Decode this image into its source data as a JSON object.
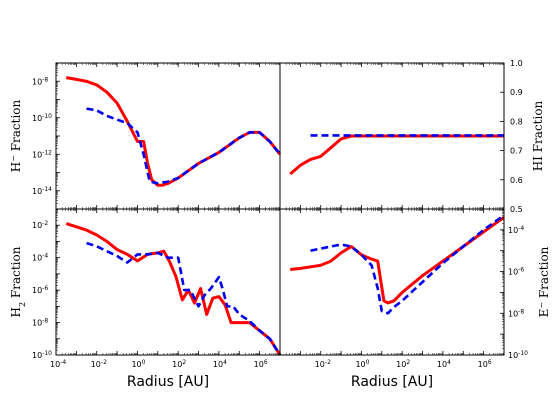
{
  "chart_data": [
    {
      "panel": "top-left",
      "type": "line",
      "ylabel": "H⁻ Fraction",
      "ylabel_main": "H",
      "ylabel_sup": "−",
      "ylabel_rest": " Fraction",
      "yscale": "log",
      "ylim_exp": [
        -15,
        -7
      ],
      "xscale": "log",
      "xlim_exp": [
        -4,
        7
      ],
      "yticks": [
        {
          "exp": -14,
          "label": "10",
          "sup": "-14"
        },
        {
          "exp": -12,
          "label": "10",
          "sup": "-12"
        },
        {
          "exp": -10,
          "label": "10",
          "sup": "-10"
        },
        {
          "exp": -8,
          "label": "10",
          "sup": "-8"
        }
      ],
      "series": [
        {
          "color": "#ff0000",
          "style": "solid",
          "x_exp": [
            -3.5,
            -3,
            -2.5,
            -2,
            -1.5,
            -1,
            -0.5,
            0,
            0.3,
            0.5,
            0.7,
            1,
            1.2,
            1.5,
            2,
            2.5,
            3,
            3.5,
            4,
            4.5,
            5,
            5.5,
            6,
            6.5,
            7
          ],
          "y_exp": [
            -7.8,
            -7.9,
            -8.0,
            -8.2,
            -8.6,
            -9.2,
            -10.2,
            -11.3,
            -11.3,
            -12.5,
            -13.4,
            -13.7,
            -13.7,
            -13.6,
            -13.3,
            -12.9,
            -12.5,
            -12.2,
            -11.9,
            -11.5,
            -11.1,
            -10.8,
            -10.8,
            -11.3,
            -12.0
          ]
        },
        {
          "color": "#0000ee",
          "style": "dashed",
          "x_exp": [
            -2.5,
            -2,
            -1.5,
            -1,
            -0.5,
            0,
            0.3,
            0.6,
            1,
            1.5,
            2,
            2.5,
            3,
            3.5,
            4,
            4.5,
            5,
            5.5,
            6,
            6.5,
            7
          ],
          "y_exp": [
            -9.5,
            -9.6,
            -9.9,
            -10.1,
            -10.3,
            -10.8,
            -12.0,
            -13.5,
            -13.6,
            -13.5,
            -13.3,
            -12.9,
            -12.5,
            -12.2,
            -11.9,
            -11.5,
            -11.1,
            -10.8,
            -10.8,
            -11.3,
            -12.0
          ]
        }
      ]
    },
    {
      "panel": "top-right",
      "type": "line",
      "ylabel": "HI Fraction",
      "yscale": "linear",
      "ylim": [
        0.5,
        1.0
      ],
      "xscale": "log",
      "xlim_exp": [
        -4,
        7
      ],
      "yticks": [
        0.5,
        0.6,
        0.7,
        0.8,
        0.9,
        1.0
      ],
      "series": [
        {
          "color": "#ff0000",
          "style": "solid",
          "x_exp": [
            -3.5,
            -3,
            -2.5,
            -2,
            -1.5,
            -1,
            -0.5,
            0,
            1,
            2,
            3,
            4,
            5,
            6,
            7
          ],
          "y_exp": [
            0.62,
            0.65,
            0.67,
            0.68,
            0.71,
            0.74,
            0.75,
            0.75,
            0.75,
            0.75,
            0.75,
            0.75,
            0.75,
            0.75,
            0.75
          ]
        },
        {
          "color": "#0000ee",
          "style": "dashed",
          "x_exp": [
            -2.5,
            -2,
            -1,
            0,
            1,
            2,
            3,
            4,
            5,
            6,
            7
          ],
          "y_exp": [
            0.752,
            0.752,
            0.752,
            0.752,
            0.752,
            0.752,
            0.752,
            0.752,
            0.752,
            0.752,
            0.752
          ]
        }
      ]
    },
    {
      "panel": "bottom-left",
      "type": "line",
      "ylabel": "H₂ Fraction",
      "ylabel_main": "H",
      "ylabel_sub": "2",
      "ylabel_rest": " Fraction",
      "yscale": "log",
      "ylim_exp": [
        -10,
        -1
      ],
      "xscale": "log",
      "xlim_exp": [
        -4,
        7
      ],
      "xlabel": "Radius [AU]",
      "xticks": [
        {
          "exp": -4,
          "label": "10",
          "sup": "-4"
        },
        {
          "exp": -2,
          "label": "10",
          "sup": "-2"
        },
        {
          "exp": 0,
          "label": "10",
          "sup": "0"
        },
        {
          "exp": 2,
          "label": "10",
          "sup": "2"
        },
        {
          "exp": 4,
          "label": "10",
          "sup": "4"
        },
        {
          "exp": 6,
          "label": "10",
          "sup": "6"
        }
      ],
      "yticks": [
        {
          "exp": -10,
          "label": "10",
          "sup": "-10"
        },
        {
          "exp": -8,
          "label": "10",
          "sup": "-8"
        },
        {
          "exp": -6,
          "label": "10",
          "sup": "-6"
        },
        {
          "exp": -4,
          "label": "10",
          "sup": "-4"
        },
        {
          "exp": -2,
          "label": "10",
          "sup": "-2"
        }
      ],
      "series": [
        {
          "color": "#ff0000",
          "style": "solid",
          "x_exp": [
            -3.5,
            -3,
            -2.5,
            -2,
            -1.5,
            -1,
            -0.5,
            0,
            0.5,
            1,
            1.3,
            1.6,
            1.9,
            2.2,
            2.5,
            2.8,
            3.1,
            3.4,
            3.7,
            4.0,
            4.3,
            4.6,
            5.0,
            5.5,
            6.0,
            6.5,
            7
          ],
          "y_exp": [
            -1.9,
            -2.1,
            -2.3,
            -2.6,
            -3.0,
            -3.5,
            -3.8,
            -4.2,
            -3.8,
            -3.7,
            -3.6,
            -4.3,
            -5.2,
            -6.6,
            -6.0,
            -6.8,
            -5.9,
            -7.5,
            -6.5,
            -6.4,
            -6.9,
            -8.0,
            -8.0,
            -8.0,
            -8.5,
            -9.0,
            -10.0
          ]
        },
        {
          "color": "#0000ee",
          "style": "dashed",
          "x_exp": [
            -2.5,
            -2,
            -1.5,
            -1,
            -0.5,
            0,
            0.5,
            1,
            1.5,
            2,
            2.3,
            2.6,
            3.0,
            3.3,
            3.6,
            4.0,
            4.2,
            4.4,
            4.7,
            5.0,
            5.5,
            6.0,
            6.5,
            7
          ],
          "y_exp": [
            -3.1,
            -3.3,
            -3.6,
            -3.9,
            -4.3,
            -3.8,
            -3.8,
            -3.7,
            -4.0,
            -4.0,
            -6.0,
            -6.0,
            -7.0,
            -6.3,
            -5.9,
            -5.2,
            -6.0,
            -7.0,
            -7.0,
            -7.5,
            -7.9,
            -8.5,
            -9.0,
            -10.0
          ]
        }
      ]
    },
    {
      "panel": "bottom-right",
      "type": "line",
      "ylabel": "E⁻ Fraction",
      "ylabel_main": "E",
      "ylabel_sup": "−",
      "ylabel_rest": " Fraction",
      "yscale": "log",
      "ylim_exp": [
        -10,
        -3
      ],
      "xscale": "log",
      "xlim_exp": [
        -4,
        7
      ],
      "xlabel": "Radius [AU]",
      "xticks": [
        {
          "exp": -2,
          "label": "10",
          "sup": "-2"
        },
        {
          "exp": 0,
          "label": "10",
          "sup": "0"
        },
        {
          "exp": 2,
          "label": "10",
          "sup": "2"
        },
        {
          "exp": 4,
          "label": "10",
          "sup": "4"
        },
        {
          "exp": 6,
          "label": "10",
          "sup": "6"
        }
      ],
      "yticks": [
        {
          "exp": -10,
          "label": "10",
          "sup": "-10"
        },
        {
          "exp": -8,
          "label": "10",
          "sup": "-8"
        },
        {
          "exp": -6,
          "label": "10",
          "sup": "-6"
        },
        {
          "exp": -4,
          "label": "10",
          "sup": "-4"
        }
      ],
      "series": [
        {
          "color": "#ff0000",
          "style": "solid",
          "x_exp": [
            -3.5,
            -3,
            -2,
            -1.5,
            -1,
            -0.5,
            0,
            0.5,
            0.8,
            1.1,
            1.3,
            1.6,
            2,
            3,
            4,
            5,
            6,
            7
          ],
          "y_exp": [
            -5.9,
            -5.85,
            -5.7,
            -5.5,
            -5.1,
            -4.8,
            -5.2,
            -5.4,
            -5.5,
            -7.4,
            -7.5,
            -7.4,
            -7.0,
            -6.2,
            -5.5,
            -4.8,
            -4.1,
            -3.4
          ]
        },
        {
          "color": "#0000ee",
          "style": "dashed",
          "x_exp": [
            -2.5,
            -2,
            -1.5,
            -1,
            -0.5,
            0,
            0.5,
            0.8,
            1.0,
            1.3,
            1.6,
            2,
            3,
            4,
            5,
            6,
            7
          ],
          "y_exp": [
            -5.0,
            -4.9,
            -4.8,
            -4.7,
            -4.8,
            -5.2,
            -5.7,
            -6.8,
            -7.9,
            -8.0,
            -7.7,
            -7.4,
            -6.5,
            -5.6,
            -4.8,
            -4.0,
            -3.3
          ]
        }
      ]
    }
  ]
}
